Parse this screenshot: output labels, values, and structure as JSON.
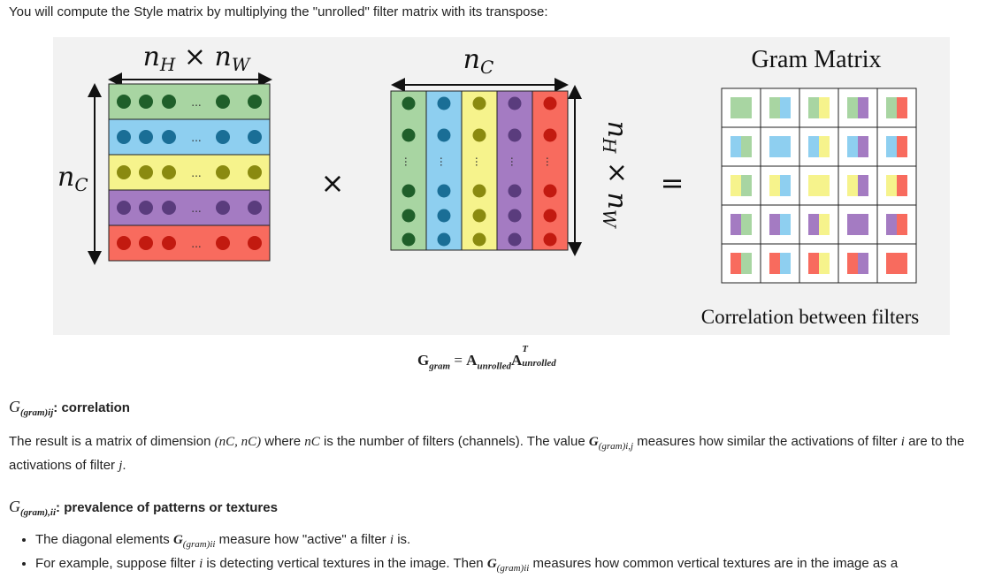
{
  "intro_text": "You will compute the Style matrix by multiplying the \"unrolled\" filter matrix with its transpose:",
  "figure": {
    "label_nh_nw": "nH × nW",
    "label_nc_top": "nC",
    "label_nc_left": "nC",
    "label_nh_nw_rotated": "nH × nW",
    "times_symbol": "×",
    "equals_symbol": "=",
    "gram_title": "Gram Matrix",
    "gram_caption": "Correlation between filters",
    "filter_colors": [
      "#a8d5a2",
      "#8ecff0",
      "#f6f38c",
      "#a47bc2",
      "#f86b5e"
    ],
    "dot_colors": [
      "#1f5f2a",
      "#1a6e96",
      "#8a8a10",
      "#5a3c7d",
      "#c21a10"
    ],
    "ellipsis": "..."
  },
  "formula": {
    "g": "G",
    "g_sub": "gram",
    "equals": "=",
    "a": "A",
    "a_sub": "unrolled",
    "a2": "A",
    "a2_sup": "T",
    "a2_sub": "unrolled"
  },
  "section1": {
    "symbol": "G",
    "symbol_sub": "(gram)ij",
    "heading": ": correlation"
  },
  "paragraph": {
    "p1": "The result is a matrix of dimension ",
    "dim": "(nC, nC)",
    "p2": " where ",
    "nc": "nC",
    "p3": " is the number of filters (channels). The value ",
    "g": "G",
    "g_sub": "(gram)i,j",
    "p4": " measures how similar the activations of filter ",
    "i": "i",
    "p5": " are to the activations of filter ",
    "j": "j",
    "p6": "."
  },
  "section2": {
    "symbol": "G",
    "symbol_sub": "(gram),ii",
    "heading": ": prevalence of patterns or textures"
  },
  "bullets": {
    "b1_a": "The diagonal elements ",
    "b1_g": "G",
    "b1_sub": "(gram)ii",
    "b1_b": " measure how \"active\" a filter ",
    "b1_i": "i",
    "b1_c": " is.",
    "b2_a": "For example, suppose filter ",
    "b2_i": "i",
    "b2_b": " is detecting vertical textures in the image. Then ",
    "b2_g": "G",
    "b2_sub": "(gram)ii",
    "b2_c": " measures how common vertical textures are in the image as a"
  }
}
